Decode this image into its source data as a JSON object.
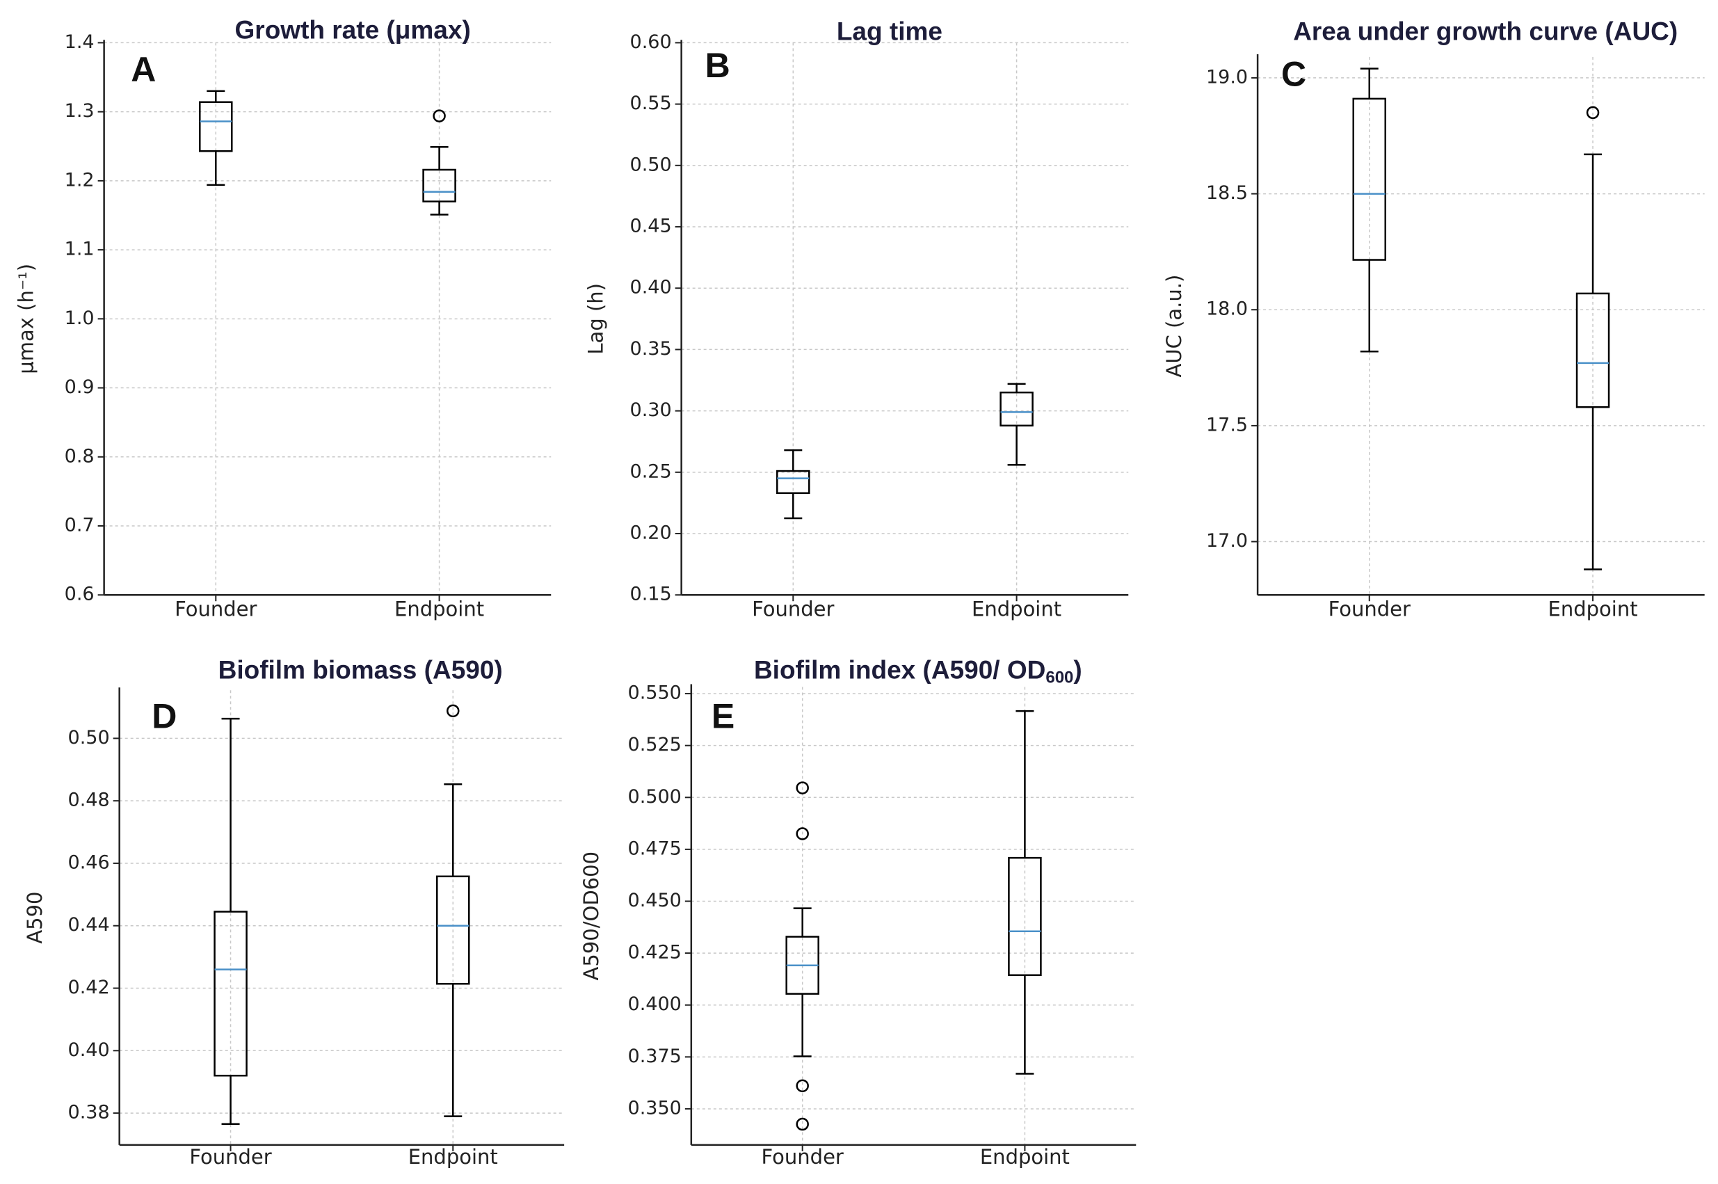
{
  "chart_data": [
    {
      "type": "box",
      "title": "Growth rate (μmax)",
      "panel": "A",
      "ylabel": "μmax (h⁻¹)",
      "grid": true,
      "categories": [
        "Founder",
        "Endpoint"
      ],
      "median_color": "#4a90c8",
      "box_color": "#000000",
      "ylim": [
        0.6,
        1.4
      ],
      "yticks": [
        0.6,
        0.7,
        0.8,
        0.9,
        {
          "value": 1.0,
          "label": "1.0"
        },
        1.1,
        1.2,
        1.3,
        1.4
      ],
      "boxes": [
        {
          "whislo": 1.194,
          "q1": 1.243,
          "med": 1.286,
          "q3": 1.314,
          "whishi": 1.33,
          "fliers": []
        },
        {
          "whislo": 1.151,
          "q1": 1.17,
          "med": 1.184,
          "q3": 1.216,
          "whishi": 1.249,
          "fliers": [
            1.294
          ]
        }
      ]
    },
    {
      "type": "box",
      "title": "Lag time",
      "panel": "B",
      "ylabel": "Lag (h)",
      "grid": true,
      "categories": [
        "Founder",
        "Endpoint"
      ],
      "median_color": "#4a90c8",
      "box_color": "#000000",
      "ylim": [
        0.15,
        0.6
      ],
      "yticks": [
        0.15,
        {
          "value": 0.2,
          "label": "0.20"
        },
        0.25,
        {
          "value": 0.3,
          "label": "0.30"
        },
        0.35,
        {
          "value": 0.4,
          "label": "0.40"
        },
        0.45,
        {
          "value": 0.5,
          "label": "0.50"
        },
        0.55,
        {
          "value": 0.6,
          "label": "0.60"
        }
      ],
      "boxes": [
        {
          "whislo": 0.2125,
          "q1": 0.233,
          "med": 0.245,
          "q3": 0.251,
          "whishi": 0.268,
          "fliers": []
        },
        {
          "whislo": 0.256,
          "q1": 0.288,
          "med": 0.299,
          "q3": 0.315,
          "whishi": 0.322,
          "fliers": []
        }
      ]
    },
    {
      "type": "box",
      "title": "Area under growth curve (AUC)",
      "panel": "C",
      "ylabel": "AUC (a.u.)",
      "grid": true,
      "categories": [
        "Founder",
        "Endpoint"
      ],
      "median_color": "#4a90c8",
      "box_color": "#000000",
      "ylim": [
        16.77,
        19.09
      ],
      "yticks": [
        {
          "value": 17.0,
          "label": "17.0"
        },
        17.5,
        {
          "value": 18.0,
          "label": "18.0"
        },
        18.5,
        {
          "value": 19.0,
          "label": "19.0"
        }
      ],
      "boxes": [
        {
          "whislo": 17.82,
          "q1": 18.215,
          "med": 18.5,
          "q3": 18.91,
          "whishi": 19.04,
          "fliers": []
        },
        {
          "whislo": 16.88,
          "q1": 17.58,
          "med": 17.77,
          "q3": 18.07,
          "whishi": 18.67,
          "fliers": [
            18.85
          ]
        }
      ]
    },
    {
      "type": "box",
      "title": "Biofilm biomass (A590)",
      "panel": "D",
      "ylabel": "A590",
      "grid": true,
      "categories": [
        "Founder",
        "Endpoint"
      ],
      "median_color": "#4a90c8",
      "box_color": "#000000",
      "ylim": [
        0.3698,
        0.5154
      ],
      "yticks": [
        0.38,
        {
          "value": 0.4,
          "label": "0.40"
        },
        0.42,
        0.44,
        0.46,
        0.48,
        {
          "value": 0.5,
          "label": "0.50"
        }
      ],
      "boxes": [
        {
          "whislo": 0.3765,
          "q1": 0.392,
          "med": 0.426,
          "q3": 0.4445,
          "whishi": 0.5063,
          "fliers": []
        },
        {
          "whislo": 0.379,
          "q1": 0.4214,
          "med": 0.44,
          "q3": 0.4558,
          "whishi": 0.4853,
          "fliers": [
            0.5088
          ]
        }
      ]
    },
    {
      "type": "box",
      "title": "Biofilm index (A590/ OD",
      "title_subscript": "600",
      "title_suffix": ")",
      "panel": "E",
      "ylabel": "A590/OD600",
      "grid": true,
      "categories": [
        "Founder",
        "Endpoint"
      ],
      "median_color": "#4a90c8",
      "box_color": "#000000",
      "ylim": [
        0.3326,
        0.5532
      ],
      "yticks": [
        {
          "value": 0.35,
          "label": "0.350"
        },
        0.375,
        {
          "value": 0.4,
          "label": "0.400"
        },
        0.425,
        {
          "value": 0.45,
          "label": "0.450"
        },
        0.475,
        {
          "value": 0.5,
          "label": "0.500"
        },
        0.525,
        {
          "value": 0.55,
          "label": "0.550"
        }
      ],
      "boxes": [
        {
          "whislo": 0.3753,
          "q1": 0.4054,
          "med": 0.4191,
          "q3": 0.4329,
          "whishi": 0.4466,
          "fliers": [
            0.5046,
            0.4825,
            0.3611,
            0.3426
          ]
        },
        {
          "whislo": 0.3669,
          "q1": 0.4144,
          "med": 0.4355,
          "q3": 0.4709,
          "whishi": 0.5416,
          "fliers": []
        }
      ]
    }
  ]
}
